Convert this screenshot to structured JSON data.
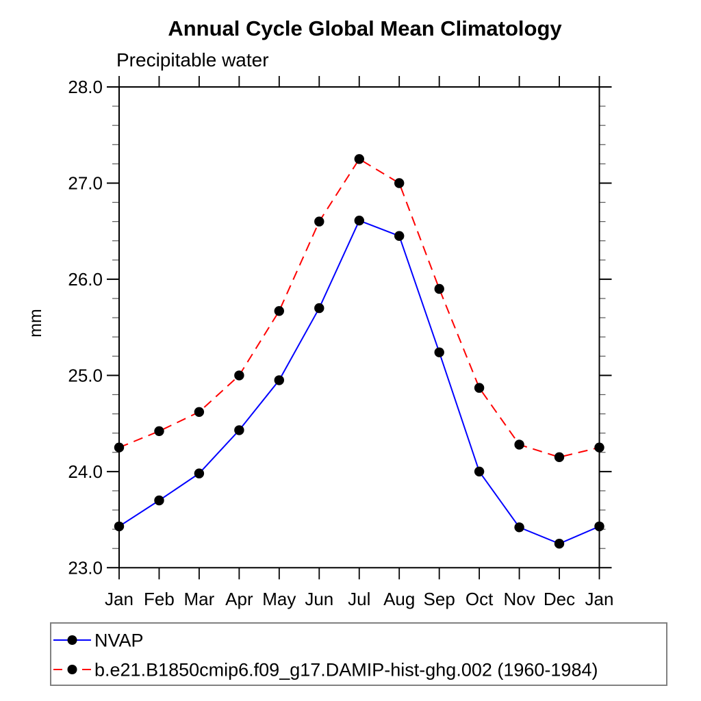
{
  "page": {
    "background": "#ffffff",
    "text_color": "#000000"
  },
  "chart_data": {
    "type": "line",
    "title": "Annual Cycle Global Mean Climatology",
    "subtitle": "Precipitable water",
    "xlabel": "",
    "ylabel": "mm",
    "categories": [
      "Jan",
      "Feb",
      "Mar",
      "Apr",
      "May",
      "Jun",
      "Jul",
      "Aug",
      "Sep",
      "Oct",
      "Nov",
      "Dec",
      "Jan"
    ],
    "ylim": [
      23.0,
      28.0
    ],
    "ytick_major_step": 1.0,
    "ytick_minor_step": 0.2,
    "ytick_labels": [
      "23.0",
      "24.0",
      "25.0",
      "26.0",
      "27.0",
      "28.0"
    ],
    "grid": false,
    "legend_position": "bottom",
    "frame_color": "#000000",
    "legend_border_color": "#808080",
    "series": [
      {
        "name": "NVAP",
        "line_color": "#0000ff",
        "line_style": "solid",
        "marker": "filled-circle",
        "marker_color": "#000000",
        "values": [
          23.43,
          23.7,
          23.98,
          24.43,
          24.95,
          25.7,
          26.61,
          26.45,
          25.24,
          24.0,
          23.42,
          23.25,
          23.43
        ]
      },
      {
        "name": "b.e21.B1850cmip6.f09_g17.DAMIP-hist-ghg.002 (1960-1984)",
        "line_color": "#ff0000",
        "line_style": "dashed",
        "marker": "filled-circle",
        "marker_color": "#000000",
        "values": [
          24.25,
          24.42,
          24.62,
          25.0,
          25.67,
          26.6,
          27.25,
          27.0,
          25.9,
          24.87,
          24.28,
          24.15,
          24.25
        ]
      }
    ]
  }
}
